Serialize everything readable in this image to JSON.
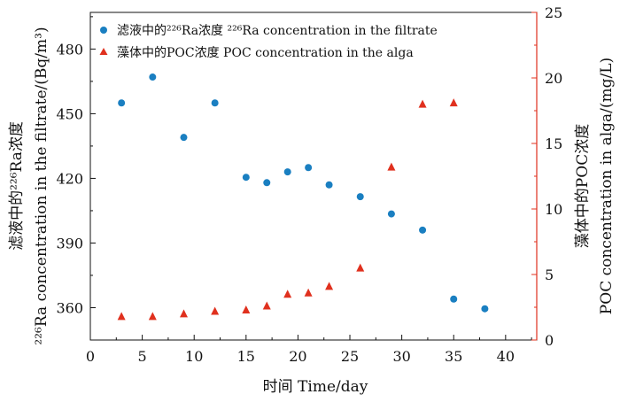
{
  "chart_data": {
    "type": "scatter",
    "dual_axis": true,
    "xlabel": "时间 Time/day",
    "ylabel_left": "²²⁶Ra concentration in the filtrate/(Bq/m³)",
    "ylabel_left_cn": "滤液中的²²⁶Ra浓度",
    "ylabel_right": "藻体中的POC浓度",
    "ylabel_right_en": "POC concentration in alga/(mg/L)",
    "xlim": [
      0,
      43
    ],
    "ylim_left": [
      345,
      497
    ],
    "ylim_right": [
      0,
      25
    ],
    "x_ticks": [
      0,
      5,
      10,
      15,
      20,
      25,
      30,
      35,
      40
    ],
    "y_left_ticks": [
      360,
      390,
      420,
      450,
      480
    ],
    "y_right_ticks": [
      0,
      5,
      10,
      15,
      20,
      25
    ],
    "series": [
      {
        "name": "滤液中的²²⁶Ra浓度 ²²⁶Ra concentration in the filtrate",
        "axis": "left",
        "marker": "circle",
        "color": "#1a7fc1",
        "x": [
          3,
          6,
          9,
          12,
          15,
          17,
          19,
          21,
          23,
          26,
          29,
          32,
          35,
          38
        ],
        "y": [
          455,
          467,
          439,
          455,
          420.5,
          418,
          423,
          425,
          417,
          411.5,
          403.5,
          396,
          364,
          359.5
        ]
      },
      {
        "name": "藻体中的POC浓度 POC concentration in the alga",
        "axis": "right",
        "marker": "triangle",
        "color": "#e0301e",
        "x": [
          3,
          6,
          9,
          12,
          15,
          17,
          19,
          21,
          23,
          26,
          29,
          32,
          35
        ],
        "y": [
          1.8,
          1.8,
          2.0,
          2.2,
          2.3,
          2.6,
          3.5,
          3.6,
          4.1,
          5.5,
          13.2,
          18.0,
          18.1
        ]
      }
    ]
  }
}
